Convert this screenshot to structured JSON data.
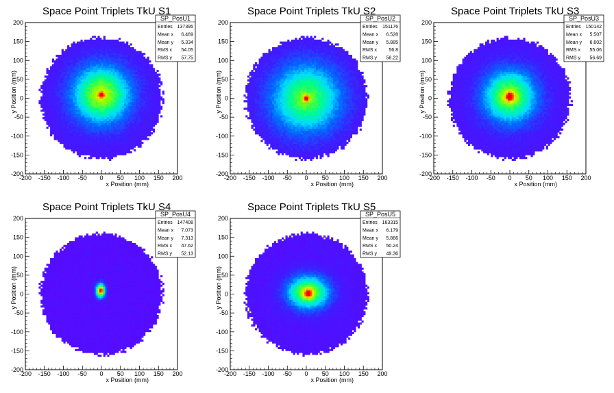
{
  "chart_data": [
    {
      "type": "heatmap",
      "title": "Space Point Triplets TkU S1",
      "xlabel": "x Position (mm)",
      "ylabel": "y Position (mm)",
      "xlim": [
        -200,
        200
      ],
      "ylim": [
        -200,
        200
      ],
      "xticks": [
        -200,
        -150,
        -100,
        -50,
        0,
        50,
        100,
        150,
        200
      ],
      "yticks": [
        -200,
        -150,
        -100,
        -50,
        0,
        50,
        100,
        150,
        200
      ],
      "stats": {
        "name": "SP_PosU1",
        "rows": [
          {
            "label": "Entries",
            "value": "137395"
          },
          {
            "label": "Mean x",
            "value": "6.469"
          },
          {
            "label": "Mean y",
            "value": "5.334"
          },
          {
            "label": "RMS x",
            "value": "54.05"
          },
          {
            "label": "RMS y",
            "value": "57.75"
          }
        ]
      },
      "distribution": {
        "radius": 160,
        "core_x": 0,
        "core_y": 10,
        "core_w": 55,
        "core_h": 55,
        "core_amp": 0.62,
        "peak_x": 0,
        "peak_y": 10,
        "peak_amp": 0.4,
        "peak_w": 6,
        "base": 0.12
      }
    },
    {
      "type": "heatmap",
      "title": "Space Point Triplets TkU S2",
      "xlabel": "x Position (mm)",
      "ylabel": "y Position (mm)",
      "xlim": [
        -200,
        200
      ],
      "ylim": [
        -200,
        200
      ],
      "xticks": [
        -200,
        -150,
        -100,
        -50,
        0,
        50,
        100,
        150,
        200
      ],
      "yticks": [
        -200,
        -150,
        -100,
        -50,
        0,
        50,
        100,
        150,
        200
      ],
      "stats": {
        "name": "SP_PosU2",
        "rows": [
          {
            "label": "Entries",
            "value": "151176"
          },
          {
            "label": "Mean x",
            "value": "6.528"
          },
          {
            "label": "Mean y",
            "value": "5.885"
          },
          {
            "label": "RMS x",
            "value": "56.8"
          },
          {
            "label": "RMS y",
            "value": "58.22"
          }
        ]
      },
      "distribution": {
        "radius": 160,
        "core_x": 0,
        "core_y": 0,
        "core_w": 65,
        "core_h": 65,
        "core_amp": 0.55,
        "peak_x": 0,
        "peak_y": 0,
        "peak_amp": 0.45,
        "peak_w": 6,
        "base": 0.12
      }
    },
    {
      "type": "heatmap",
      "title": "Space Point Triplets TkU S3",
      "xlabel": "x Position (mm)",
      "ylabel": "y Position (mm)",
      "xlim": [
        -200,
        200
      ],
      "ylim": [
        -200,
        200
      ],
      "xticks": [
        -200,
        -150,
        -100,
        -50,
        0,
        50,
        100,
        150,
        200
      ],
      "yticks": [
        -200,
        -150,
        -100,
        -50,
        0,
        50,
        100,
        150,
        200
      ],
      "stats": {
        "name": "SP_PosU3",
        "rows": [
          {
            "label": "Entries",
            "value": "150142"
          },
          {
            "label": "Mean x",
            "value": "5.507"
          },
          {
            "label": "Mean y",
            "value": "6.602"
          },
          {
            "label": "RMS x",
            "value": "55.06"
          },
          {
            "label": "RMS y",
            "value": "56.69"
          }
        ]
      },
      "distribution": {
        "radius": 160,
        "core_x": 0,
        "core_y": 5,
        "core_w": 50,
        "core_h": 50,
        "core_amp": 0.6,
        "peak_x": 0,
        "peak_y": 5,
        "peak_amp": 0.4,
        "peak_w": 9,
        "base": 0.12
      }
    },
    {
      "type": "heatmap",
      "title": "Space Point Triplets TkU S4",
      "xlabel": "x Position (mm)",
      "ylabel": "y Position (mm)",
      "xlim": [
        -200,
        200
      ],
      "ylim": [
        -200,
        200
      ],
      "xticks": [
        -200,
        -150,
        -100,
        -50,
        0,
        50,
        100,
        150,
        200
      ],
      "yticks": [
        -200,
        -150,
        -100,
        -50,
        0,
        50,
        100,
        150,
        200
      ],
      "stats": {
        "name": "SP_PosU4",
        "rows": [
          {
            "label": "Entries",
            "value": "147408"
          },
          {
            "label": "Mean x",
            "value": "7.073"
          },
          {
            "label": "Mean y",
            "value": "7.313"
          },
          {
            "label": "RMS x",
            "value": "47.62"
          },
          {
            "label": "RMS y",
            "value": "52.13"
          }
        ]
      },
      "distribution": {
        "radius": 160,
        "core_x": -2,
        "core_y": 10,
        "core_w": 9,
        "core_h": 14,
        "core_amp": 0.85,
        "peak_x": 0,
        "peak_y": 10,
        "peak_amp": 0.15,
        "peak_w": 4,
        "base": 0.08
      }
    },
    {
      "type": "heatmap",
      "title": "Space Point Triplets TkU S5",
      "xlabel": "x Position (mm)",
      "ylabel": "y Position (mm)",
      "xlim": [
        -200,
        200
      ],
      "ylim": [
        -200,
        200
      ],
      "xticks": [
        -200,
        -150,
        -100,
        -50,
        0,
        50,
        100,
        150,
        200
      ],
      "yticks": [
        -200,
        -150,
        -100,
        -50,
        0,
        50,
        100,
        150,
        200
      ],
      "stats": {
        "name": "SP_PosU5",
        "rows": [
          {
            "label": "Entries",
            "value": "163315"
          },
          {
            "label": "Mean x",
            "value": "6.179"
          },
          {
            "label": "Mean y",
            "value": "5.866"
          },
          {
            "label": "RMS x",
            "value": "50.24"
          },
          {
            "label": "RMS y",
            "value": "49.36"
          }
        ]
      },
      "distribution": {
        "radius": 160,
        "core_x": 5,
        "core_y": 5,
        "core_w": 40,
        "core_h": 32,
        "core_amp": 0.65,
        "peak_x": 5,
        "peak_y": 2,
        "peak_amp": 0.35,
        "peak_w": 8,
        "base": 0.1
      }
    }
  ]
}
